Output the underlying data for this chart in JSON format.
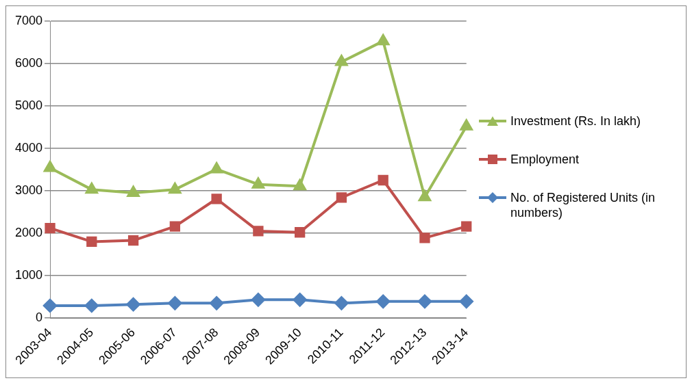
{
  "chart_data": {
    "type": "line",
    "categories": [
      "2003-04",
      "2004-05",
      "2005-06",
      "2006-07",
      "2007-08",
      "2008-09",
      "2009-10",
      "2010-11",
      "2011-12",
      "2012-13",
      "2013-14"
    ],
    "series": [
      {
        "name": "Investment (Rs. In lakh)",
        "color": "#9bbb59",
        "marker": "triangle",
        "values": [
          3540,
          3030,
          2950,
          3030,
          3510,
          3150,
          3110,
          6040,
          6530,
          2850,
          4520
        ]
      },
      {
        "name": "Employment",
        "color": "#c0504d",
        "marker": "square",
        "values": [
          2120,
          1800,
          1830,
          2160,
          2810,
          2050,
          2020,
          2840,
          3250,
          1890,
          2160
        ]
      },
      {
        "name": "No. of Registered Units (in numbers)",
        "color": "#4f81bd",
        "marker": "diamond",
        "values": [
          290,
          290,
          320,
          350,
          350,
          430,
          430,
          350,
          390,
          390,
          390
        ]
      }
    ],
    "ylim": [
      0,
      7000
    ],
    "yticks": [
      0,
      1000,
      2000,
      3000,
      4000,
      5000,
      6000,
      7000
    ],
    "grid": "y",
    "legend": "right"
  }
}
